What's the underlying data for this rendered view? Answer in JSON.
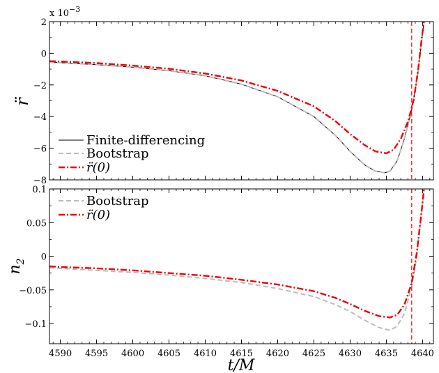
{
  "chart_data": [
    {
      "type": "line",
      "panel": "top",
      "ylabel": "r̈",
      "y_multiplier": "x 10",
      "y_multiplier_exp": "−3",
      "xlim": [
        4588.5,
        4641.5
      ],
      "ylim": [
        -8,
        2
      ],
      "xticks": [
        4590,
        4595,
        4600,
        4605,
        4610,
        4615,
        4620,
        4625,
        4630,
        4635,
        4640
      ],
      "yticks": [
        2,
        0,
        -2,
        -4,
        -6,
        -8
      ],
      "ytick_labels": [
        "2",
        "0",
        "−2",
        "−4",
        "−6",
        "−8"
      ],
      "vline_x": 4638.5,
      "legend_position": "lower-left",
      "series": [
        {
          "name": "Finite-differencing",
          "style": "solid",
          "color": "#000000",
          "points": [
            [
              4588.5,
              -0.55
            ],
            [
              4590,
              -0.6
            ],
            [
              4595,
              -0.72
            ],
            [
              4600,
              -0.88
            ],
            [
              4605,
              -1.1
            ],
            [
              4610,
              -1.42
            ],
            [
              4615,
              -1.95
            ],
            [
              4620,
              -2.75
            ],
            [
              4625,
              -4.0
            ],
            [
              4628,
              -5.2
            ],
            [
              4630,
              -6.2
            ],
            [
              4632,
              -7.05
            ],
            [
              4633.5,
              -7.45
            ],
            [
              4634.8,
              -7.55
            ],
            [
              4635.5,
              -7.45
            ],
            [
              4636.5,
              -6.8
            ],
            [
              4637.5,
              -5.4
            ],
            [
              4638.5,
              -3.6
            ],
            [
              4639.3,
              -1.5
            ],
            [
              4639.8,
              0.5
            ],
            [
              4640.2,
              2.0
            ]
          ]
        },
        {
          "name": "Bootstrap",
          "style": "dashed",
          "color": "#bbbbbb",
          "points": [
            [
              4588.5,
              -0.55
            ],
            [
              4590,
              -0.6
            ],
            [
              4595,
              -0.72
            ],
            [
              4600,
              -0.88
            ],
            [
              4605,
              -1.1
            ],
            [
              4610,
              -1.42
            ],
            [
              4615,
              -1.95
            ],
            [
              4620,
              -2.75
            ],
            [
              4625,
              -4.0
            ],
            [
              4628,
              -5.2
            ],
            [
              4630,
              -6.2
            ],
            [
              4632,
              -7.05
            ],
            [
              4633.5,
              -7.45
            ],
            [
              4634.8,
              -7.55
            ],
            [
              4635.5,
              -7.45
            ],
            [
              4636.5,
              -6.8
            ],
            [
              4637.5,
              -5.4
            ],
            [
              4638.5,
              -3.6
            ],
            [
              4639.3,
              -1.5
            ],
            [
              4639.8,
              0.5
            ],
            [
              4640.2,
              2.0
            ]
          ]
        },
        {
          "name": "r̈(0)",
          "style": "dashdot",
          "color": "#ee0000",
          "points": [
            [
              4588.5,
              -0.5
            ],
            [
              4590,
              -0.52
            ],
            [
              4595,
              -0.62
            ],
            [
              4600,
              -0.78
            ],
            [
              4605,
              -0.98
            ],
            [
              4610,
              -1.28
            ],
            [
              4615,
              -1.72
            ],
            [
              4620,
              -2.38
            ],
            [
              4625,
              -3.35
            ],
            [
              4628,
              -4.3
            ],
            [
              4630,
              -5.1
            ],
            [
              4632,
              -5.8
            ],
            [
              4633.5,
              -6.2
            ],
            [
              4635,
              -6.32
            ],
            [
              4636,
              -6.1
            ],
            [
              4637,
              -5.4
            ],
            [
              4638,
              -4.3
            ],
            [
              4638.8,
              -2.9
            ],
            [
              4639.4,
              -1.0
            ],
            [
              4639.9,
              1.0
            ],
            [
              4640.2,
              2.0
            ]
          ]
        }
      ]
    },
    {
      "type": "line",
      "panel": "bottom",
      "ylabel": "n",
      "ylabel_sub": "2",
      "xlabel": "t/M",
      "xlim": [
        4588.5,
        4641.5
      ],
      "ylim": [
        -0.13,
        0.1
      ],
      "xticks": [
        4590,
        4595,
        4600,
        4605,
        4610,
        4615,
        4620,
        4625,
        4630,
        4635,
        4640
      ],
      "yticks": [
        0.1,
        0.05,
        0,
        -0.05,
        -0.1
      ],
      "ytick_labels": [
        "0.1",
        "0.05",
        "0",
        "−0.05",
        "−0.1"
      ],
      "vline_x": 4638.5,
      "legend_position": "upper-left",
      "series": [
        {
          "name": "Bootstrap",
          "style": "dashed",
          "color": "#bbbbbb",
          "points": [
            [
              4588.5,
              -0.017
            ],
            [
              4590,
              -0.018
            ],
            [
              4595,
              -0.021
            ],
            [
              4600,
              -0.024
            ],
            [
              4605,
              -0.028
            ],
            [
              4610,
              -0.033
            ],
            [
              4615,
              -0.039
            ],
            [
              4620,
              -0.048
            ],
            [
              4625,
              -0.06
            ],
            [
              4628,
              -0.072
            ],
            [
              4630,
              -0.082
            ],
            [
              4632,
              -0.095
            ],
            [
              4634,
              -0.106
            ],
            [
              4635.5,
              -0.11
            ],
            [
              4636.5,
              -0.104
            ],
            [
              4637.5,
              -0.085
            ],
            [
              4638.5,
              -0.045
            ],
            [
              4639.2,
              0.0
            ],
            [
              4639.8,
              0.06
            ],
            [
              4640.2,
              0.1
            ]
          ]
        },
        {
          "name": "r̈(0)",
          "style": "dashdot",
          "color": "#ee0000",
          "points": [
            [
              4588.5,
              -0.015
            ],
            [
              4590,
              -0.016
            ],
            [
              4595,
              -0.018
            ],
            [
              4600,
              -0.021
            ],
            [
              4605,
              -0.025
            ],
            [
              4610,
              -0.029
            ],
            [
              4615,
              -0.035
            ],
            [
              4620,
              -0.042
            ],
            [
              4625,
              -0.052
            ],
            [
              4628,
              -0.062
            ],
            [
              4630,
              -0.071
            ],
            [
              4632,
              -0.081
            ],
            [
              4634,
              -0.089
            ],
            [
              4635.5,
              -0.091
            ],
            [
              4636.5,
              -0.087
            ],
            [
              4637.5,
              -0.072
            ],
            [
              4638.5,
              -0.04
            ],
            [
              4639.2,
              0.005
            ],
            [
              4639.8,
              0.06
            ],
            [
              4640.2,
              0.1
            ]
          ]
        }
      ]
    }
  ]
}
